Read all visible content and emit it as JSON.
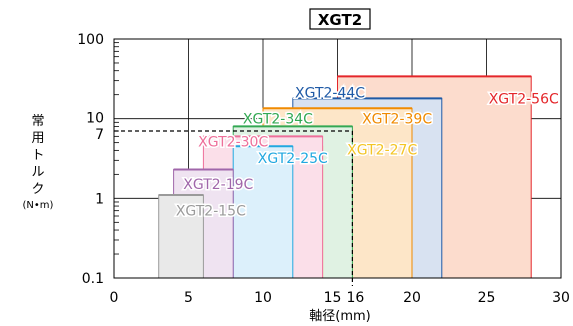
{
  "chart_data": {
    "type": "bar",
    "title": "XGT2",
    "xlabel": "軸径(mm)",
    "ylabel_chars": [
      "常",
      "用",
      "ト",
      "ル",
      "ク"
    ],
    "ylabel_unit": "(N•m)",
    "x_ticks": [
      "0",
      "5",
      "10",
      "15",
      "16",
      "20",
      "25",
      "30"
    ],
    "x_tick_values": [
      0,
      5,
      10,
      15,
      16,
      20,
      25,
      30
    ],
    "y_ticks": [
      "0.1",
      "1",
      "7",
      "10",
      "100"
    ],
    "y_tick_values": [
      0.1,
      1,
      7,
      10,
      100
    ],
    "xlim": [
      0,
      30
    ],
    "ylim": [
      0.1,
      100
    ],
    "y_scale": "log",
    "grid": true,
    "reference": {
      "x": 16,
      "y": 7
    },
    "series": [
      {
        "name": "XGT2-15C",
        "x0": 3,
        "x1": 6,
        "torque": 1.1,
        "color": "#9a9a9a",
        "fill": "#e9e9e9"
      },
      {
        "name": "XGT2-19C",
        "x0": 4,
        "x1": 8,
        "torque": 2.3,
        "color": "#a066aa",
        "fill": "#efe3f1"
      },
      {
        "name": "XGT2-30C",
        "x0": 6,
        "x1": 14,
        "torque": 6.0,
        "color": "#ee6f9a",
        "fill": "#fbdfe9"
      },
      {
        "name": "XGT2-25C",
        "x0": 8,
        "x1": 12,
        "torque": 4.5,
        "color": "#22a8e0",
        "fill": "#dcf0fb"
      },
      {
        "name": "XGT2-34C",
        "x0": 8,
        "x1": 16,
        "torque": 8.0,
        "color": "#33a853",
        "fill": "#e0f2e3"
      },
      {
        "name": "XGT2-27C",
        "x0": 12,
        "x1": 14,
        "torque": 4.5,
        "color": "#f4c524",
        "fill": "#fdf3cf"
      },
      {
        "name": "XGT2-39C",
        "x0": 10,
        "x1": 20,
        "torque": 13.5,
        "color": "#f08a00",
        "fill": "#fde6c8"
      },
      {
        "name": "XGT2-44C",
        "x0": 12,
        "x1": 22,
        "torque": 18,
        "color": "#1f5aa6",
        "fill": "#d8e2f1"
      },
      {
        "name": "XGT2-56C",
        "x0": 15,
        "x1": 28,
        "torque": 34,
        "color": "#e4262a",
        "fill": "#fcdccd"
      }
    ]
  }
}
